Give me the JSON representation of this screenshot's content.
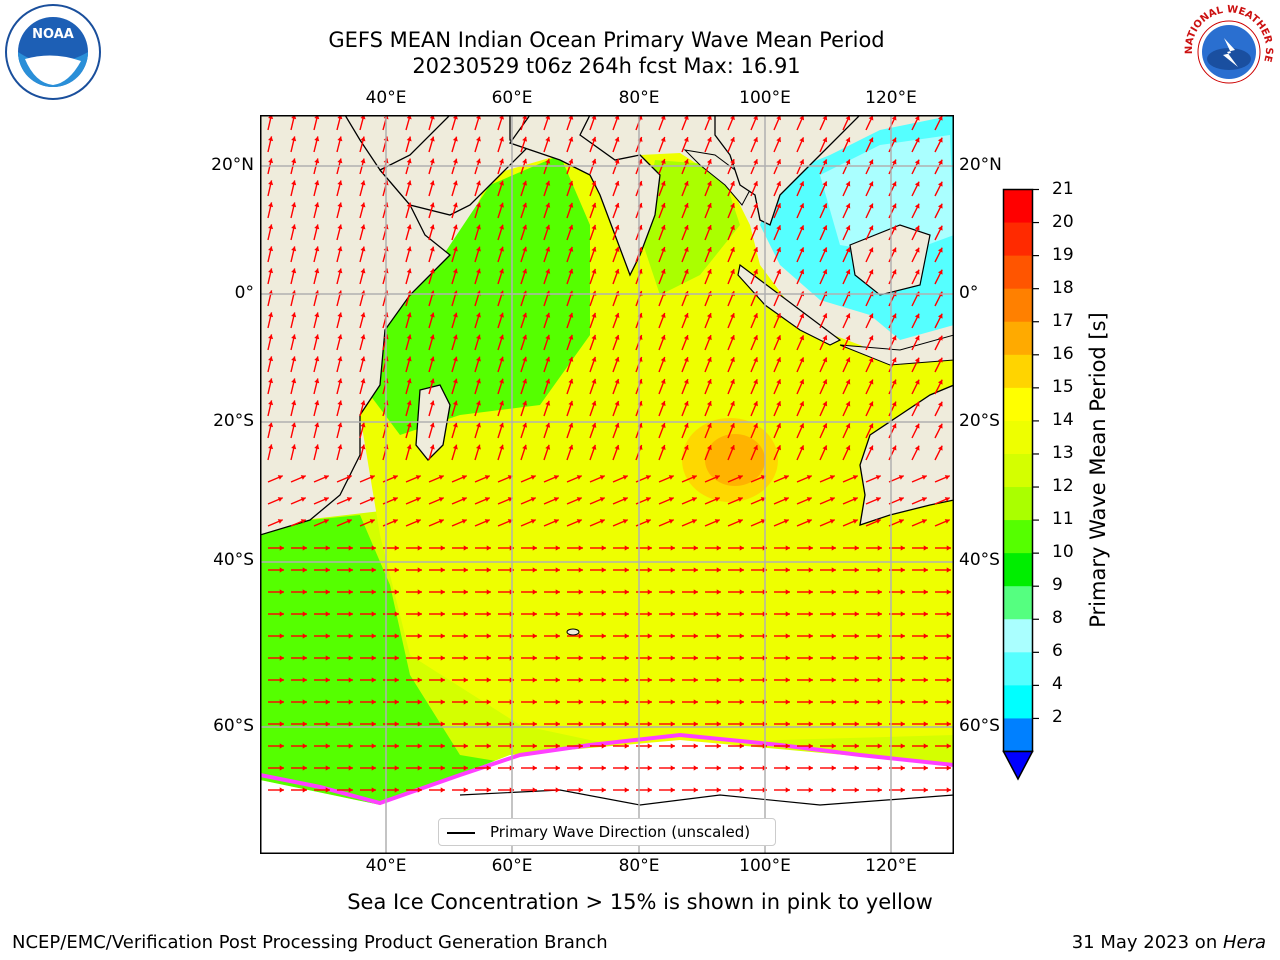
{
  "title": {
    "line1": "GEFS MEAN Indian Ocean Primary Wave Mean Period",
    "line2": "20230529 t06z 264h fcst   Max: 16.91"
  },
  "map": {
    "top_lon_labels": [
      "40°E",
      "60°E",
      "80°E",
      "100°E",
      "120°E"
    ],
    "bottom_lon_labels": [
      "40°E",
      "60°E",
      "80°E",
      "100°E",
      "120°E"
    ],
    "left_lat_labels": [
      "20°N",
      "0°",
      "20°S",
      "40°S",
      "60°S"
    ],
    "right_lat_labels": [
      "20°N",
      "0°",
      "20°S",
      "40°S",
      "60°S"
    ],
    "lon_range": [
      20,
      130
    ],
    "lat_range": [
      -75,
      28
    ],
    "legend_label": "Primary Wave Direction (unscaled)",
    "land_color": "#efecdc",
    "ice_color": "#ffffff",
    "arrow_color": "#ff0000"
  },
  "colorbar": {
    "label": "Primary Wave Mean Period [s]",
    "ticks": [
      "21",
      "20",
      "19",
      "18",
      "17",
      "16",
      "15",
      "14",
      "13",
      "12",
      "11",
      "10",
      "9",
      "8",
      "6",
      "4",
      "2"
    ],
    "colors": [
      "#ff0000",
      "#ff2a00",
      "#ff5500",
      "#ff8000",
      "#ffaa00",
      "#ffd400",
      "#ffff00",
      "#eeff00",
      "#d4ff00",
      "#aaff00",
      "#55ff00",
      "#00ee00",
      "#55ff80",
      "#aaffff",
      "#55ffff",
      "#00ffff",
      "#0080ff"
    ],
    "extend_color": "#0000ff"
  },
  "footnote": "Sea Ice Concentration > 15% is shown in pink to yellow",
  "credits": {
    "left": "NCEP/EMC/Verification Post Processing Product Generation Branch",
    "right_date": "31 May 2023 on ",
    "right_machine": "Hera"
  },
  "logos": {
    "noaa": "NOAA",
    "nws": "NATIONAL WEATHER SERVICE"
  }
}
